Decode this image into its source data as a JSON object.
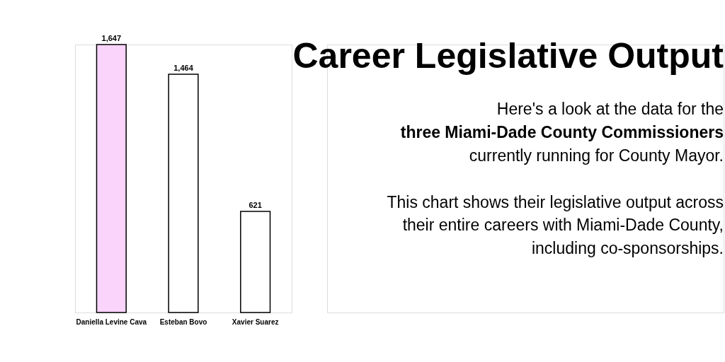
{
  "chart_data": {
    "type": "bar",
    "title": "Career Legislative Output",
    "categories": [
      "Daniella Levine Cava",
      "Esteban Bovo",
      "Xavier Suarez"
    ],
    "values": [
      1647,
      1464,
      621
    ],
    "colors": [
      "#fad4fb",
      "#ffffff",
      "#ffffff"
    ],
    "value_labels": [
      "1,647",
      "1,464",
      "621"
    ],
    "annotations": [
      "Here's a look at the data for the",
      "three Miami-Dade County Commissioners",
      "currently running for County Mayor.",
      "This chart shows their legislative output across",
      "their entire careers with Miami-Dade County,",
      "including co-sponsorships."
    ]
  }
}
